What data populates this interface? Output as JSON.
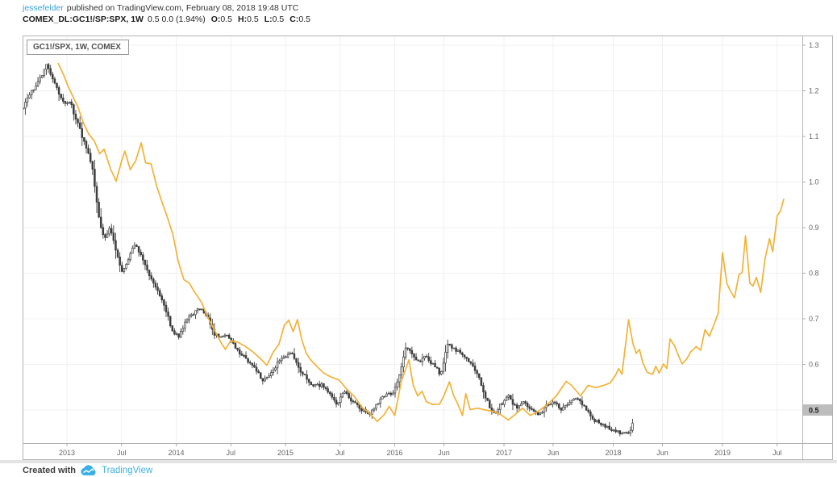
{
  "header": {
    "author": "jessefelder",
    "published_text": "published on TradingView.com, February 08, 2018 19:48 UTC",
    "symbol_line": {
      "symbol": "COMEX_DL:GC1!/SP:SPX, 1W",
      "change_text": "0.5 0.0 (1.94%)",
      "ohlc": [
        {
          "label": "O:",
          "value": "0.5"
        },
        {
          "label": "H:",
          "value": "0.5"
        },
        {
          "label": "L:",
          "value": "0.5"
        },
        {
          "label": "C:",
          "value": "0.5"
        }
      ]
    }
  },
  "chart": {
    "legend": "GC1!/SPX, 1W, COMEX",
    "colors": {
      "line": "#f2b237",
      "candle": "#3d3d3d",
      "candle_up_fill": "#ffffff",
      "grid": "#f0f0f0",
      "border": "#b3b3b3",
      "axis_text": "#666666",
      "marker_bg": "#bdbdbd",
      "marker_text": "#1a1a1a",
      "accent_blue": "#3aa2dc"
    }
  },
  "chart_data": {
    "type": "candlestick+line",
    "title": "GC1!/SPX, 1W, COMEX",
    "x_unit": "decimal_year",
    "x_range": [
      2012.6,
      2019.73
    ],
    "y_range": [
      0.42,
      1.32
    ],
    "grid": true,
    "y_ticks": [
      "1.3",
      "1.2",
      "1.1",
      "1.0",
      "0.9",
      "0.8",
      "0.7",
      "0.6",
      "0.5"
    ],
    "last_price": "0.5",
    "x_ticks": [
      {
        "t": 2013.0,
        "label": "2013"
      },
      {
        "t": 2013.5,
        "label": "Jul"
      },
      {
        "t": 2014.0,
        "label": "2014"
      },
      {
        "t": 2014.5,
        "label": "Jul"
      },
      {
        "t": 2015.0,
        "label": "2015"
      },
      {
        "t": 2015.5,
        "label": "Jul"
      },
      {
        "t": 2016.0,
        "label": "2016"
      },
      {
        "t": 2016.45,
        "label": "Jun"
      },
      {
        "t": 2017.0,
        "label": "2017"
      },
      {
        "t": 2017.45,
        "label": "Jun"
      },
      {
        "t": 2018.0,
        "label": "2018"
      },
      {
        "t": 2018.45,
        "label": "Jun"
      },
      {
        "t": 2019.0,
        "label": "2019"
      },
      {
        "t": 2019.5,
        "label": "Jul"
      }
    ],
    "series": [
      {
        "name": "candles",
        "type": "candlestick",
        "keyframes": [
          [
            2012.6,
            1.165
          ],
          [
            2012.66,
            1.19
          ],
          [
            2012.72,
            1.215
          ],
          [
            2012.78,
            1.24
          ],
          [
            2012.82,
            1.26
          ],
          [
            2012.87,
            1.225
          ],
          [
            2012.93,
            1.195
          ],
          [
            2012.98,
            1.17
          ],
          [
            2013.03,
            1.175
          ],
          [
            2013.08,
            1.14
          ],
          [
            2013.14,
            1.1
          ],
          [
            2013.19,
            1.065
          ],
          [
            2013.24,
            1.02
          ],
          [
            2013.29,
            0.925
          ],
          [
            2013.34,
            0.875
          ],
          [
            2013.39,
            0.9
          ],
          [
            2013.45,
            0.85
          ],
          [
            2013.51,
            0.8
          ],
          [
            2013.56,
            0.83
          ],
          [
            2013.62,
            0.865
          ],
          [
            2013.68,
            0.84
          ],
          [
            2013.74,
            0.805
          ],
          [
            2013.8,
            0.775
          ],
          [
            2013.86,
            0.745
          ],
          [
            2013.91,
            0.715
          ],
          [
            2013.97,
            0.668
          ],
          [
            2014.03,
            0.662
          ],
          [
            2014.09,
            0.7
          ],
          [
            2014.16,
            0.712
          ],
          [
            2014.22,
            0.725
          ],
          [
            2014.28,
            0.708
          ],
          [
            2014.34,
            0.67
          ],
          [
            2014.4,
            0.656
          ],
          [
            2014.46,
            0.664
          ],
          [
            2014.52,
            0.644
          ],
          [
            2014.59,
            0.624
          ],
          [
            2014.66,
            0.608
          ],
          [
            2014.73,
            0.588
          ],
          [
            2014.79,
            0.565
          ],
          [
            2014.86,
            0.578
          ],
          [
            2014.93,
            0.602
          ],
          [
            2015.0,
            0.617
          ],
          [
            2015.06,
            0.628
          ],
          [
            2015.13,
            0.59
          ],
          [
            2015.2,
            0.565
          ],
          [
            2015.27,
            0.552
          ],
          [
            2015.33,
            0.557
          ],
          [
            2015.4,
            0.535
          ],
          [
            2015.47,
            0.515
          ],
          [
            2015.54,
            0.54
          ],
          [
            2015.61,
            0.52
          ],
          [
            2015.69,
            0.502
          ],
          [
            2015.77,
            0.49
          ],
          [
            2015.84,
            0.516
          ],
          [
            2015.91,
            0.53
          ],
          [
            2015.98,
            0.536
          ],
          [
            2016.04,
            0.572
          ],
          [
            2016.1,
            0.636
          ],
          [
            2016.16,
            0.624
          ],
          [
            2016.22,
            0.605
          ],
          [
            2016.28,
            0.62
          ],
          [
            2016.35,
            0.6
          ],
          [
            2016.42,
            0.578
          ],
          [
            2016.48,
            0.644
          ],
          [
            2016.55,
            0.634
          ],
          [
            2016.62,
            0.623
          ],
          [
            2016.69,
            0.604
          ],
          [
            2016.76,
            0.578
          ],
          [
            2016.83,
            0.528
          ],
          [
            2016.9,
            0.49
          ],
          [
            2016.97,
            0.512
          ],
          [
            2017.04,
            0.53
          ],
          [
            2017.11,
            0.506
          ],
          [
            2017.18,
            0.52
          ],
          [
            2017.25,
            0.5
          ],
          [
            2017.32,
            0.488
          ],
          [
            2017.39,
            0.51
          ],
          [
            2017.46,
            0.52
          ],
          [
            2017.53,
            0.5
          ],
          [
            2017.6,
            0.516
          ],
          [
            2017.67,
            0.528
          ],
          [
            2017.74,
            0.506
          ],
          [
            2017.81,
            0.482
          ],
          [
            2017.88,
            0.468
          ],
          [
            2017.95,
            0.461
          ],
          [
            2018.02,
            0.456
          ],
          [
            2018.09,
            0.448
          ],
          [
            2018.15,
            0.452
          ],
          [
            2018.19,
            0.478
          ]
        ]
      },
      {
        "name": "overlay_line",
        "type": "line",
        "keyframes": [
          [
            2012.92,
            1.26
          ],
          [
            2012.97,
            1.235
          ],
          [
            2013.01,
            1.21
          ],
          [
            2013.06,
            1.185
          ],
          [
            2013.1,
            1.165
          ],
          [
            2013.15,
            1.13
          ],
          [
            2013.2,
            1.105
          ],
          [
            2013.25,
            1.09
          ],
          [
            2013.3,
            1.062
          ],
          [
            2013.34,
            1.072
          ],
          [
            2013.4,
            1.028
          ],
          [
            2013.45,
            1.002
          ],
          [
            2013.5,
            1.046
          ],
          [
            2013.53,
            1.068
          ],
          [
            2013.58,
            1.027
          ],
          [
            2013.63,
            1.047
          ],
          [
            2013.68,
            1.086
          ],
          [
            2013.72,
            1.042
          ],
          [
            2013.77,
            1.04
          ],
          [
            2013.82,
            0.992
          ],
          [
            2013.87,
            0.956
          ],
          [
            2013.92,
            0.922
          ],
          [
            2013.97,
            0.885
          ],
          [
            2014.02,
            0.825
          ],
          [
            2014.07,
            0.786
          ],
          [
            2014.12,
            0.778
          ],
          [
            2014.17,
            0.758
          ],
          [
            2014.23,
            0.737
          ],
          [
            2014.29,
            0.703
          ],
          [
            2014.35,
            0.675
          ],
          [
            2014.41,
            0.648
          ],
          [
            2014.45,
            0.633
          ],
          [
            2014.5,
            0.652
          ],
          [
            2014.56,
            0.649
          ],
          [
            2014.63,
            0.64
          ],
          [
            2014.7,
            0.628
          ],
          [
            2014.77,
            0.613
          ],
          [
            2014.83,
            0.598
          ],
          [
            2014.89,
            0.628
          ],
          [
            2014.94,
            0.644
          ],
          [
            2014.99,
            0.686
          ],
          [
            2015.03,
            0.697
          ],
          [
            2015.07,
            0.672
          ],
          [
            2015.11,
            0.698
          ],
          [
            2015.15,
            0.654
          ],
          [
            2015.19,
            0.625
          ],
          [
            2015.23,
            0.61
          ],
          [
            2015.29,
            0.595
          ],
          [
            2015.35,
            0.581
          ],
          [
            2015.42,
            0.572
          ],
          [
            2015.49,
            0.566
          ],
          [
            2015.56,
            0.546
          ],
          [
            2015.63,
            0.53
          ],
          [
            2015.7,
            0.506
          ],
          [
            2015.77,
            0.493
          ],
          [
            2015.84,
            0.475
          ],
          [
            2015.9,
            0.489
          ],
          [
            2015.95,
            0.508
          ],
          [
            2016.0,
            0.488
          ],
          [
            2016.06,
            0.562
          ],
          [
            2016.13,
            0.61
          ],
          [
            2016.17,
            0.554
          ],
          [
            2016.21,
            0.531
          ],
          [
            2016.25,
            0.541
          ],
          [
            2016.29,
            0.518
          ],
          [
            2016.35,
            0.512
          ],
          [
            2016.41,
            0.513
          ],
          [
            2016.45,
            0.531
          ],
          [
            2016.5,
            0.562
          ],
          [
            2016.54,
            0.531
          ],
          [
            2016.58,
            0.512
          ],
          [
            2016.62,
            0.488
          ],
          [
            2016.65,
            0.536
          ],
          [
            2016.69,
            0.501
          ],
          [
            2016.76,
            0.504
          ],
          [
            2016.83,
            0.5
          ],
          [
            2016.9,
            0.497
          ],
          [
            2016.97,
            0.49
          ],
          [
            2017.04,
            0.478
          ],
          [
            2017.12,
            0.494
          ],
          [
            2017.17,
            0.504
          ],
          [
            2017.24,
            0.488
          ],
          [
            2017.32,
            0.498
          ],
          [
            2017.4,
            0.513
          ],
          [
            2017.48,
            0.531
          ],
          [
            2017.57,
            0.563
          ],
          [
            2017.62,
            0.554
          ],
          [
            2017.7,
            0.531
          ],
          [
            2017.77,
            0.554
          ],
          [
            2017.84,
            0.549
          ],
          [
            2017.91,
            0.554
          ],
          [
            2017.97,
            0.559
          ],
          [
            2018.02,
            0.576
          ],
          [
            2018.05,
            0.591
          ],
          [
            2018.08,
            0.578
          ],
          [
            2018.14,
            0.698
          ],
          [
            2018.18,
            0.646
          ],
          [
            2018.21,
            0.624
          ],
          [
            2018.24,
            0.633
          ],
          [
            2018.27,
            0.604
          ],
          [
            2018.31,
            0.583
          ],
          [
            2018.36,
            0.578
          ],
          [
            2018.39,
            0.596
          ],
          [
            2018.42,
            0.581
          ],
          [
            2018.46,
            0.601
          ],
          [
            2018.49,
            0.591
          ],
          [
            2018.52,
            0.656
          ],
          [
            2018.56,
            0.641
          ],
          [
            2018.6,
            0.618
          ],
          [
            2018.63,
            0.601
          ],
          [
            2018.67,
            0.611
          ],
          [
            2018.71,
            0.628
          ],
          [
            2018.76,
            0.639
          ],
          [
            2018.8,
            0.631
          ],
          [
            2018.84,
            0.676
          ],
          [
            2018.88,
            0.662
          ],
          [
            2018.92,
            0.686
          ],
          [
            2018.96,
            0.712
          ],
          [
            2019.0,
            0.845
          ],
          [
            2019.04,
            0.778
          ],
          [
            2019.07,
            0.762
          ],
          [
            2019.11,
            0.746
          ],
          [
            2019.15,
            0.796
          ],
          [
            2019.18,
            0.802
          ],
          [
            2019.21,
            0.882
          ],
          [
            2019.25,
            0.778
          ],
          [
            2019.28,
            0.772
          ],
          [
            2019.31,
            0.791
          ],
          [
            2019.35,
            0.758
          ],
          [
            2019.39,
            0.832
          ],
          [
            2019.43,
            0.876
          ],
          [
            2019.46,
            0.847
          ],
          [
            2019.5,
            0.926
          ],
          [
            2019.53,
            0.936
          ],
          [
            2019.56,
            0.962
          ]
        ]
      }
    ]
  },
  "footer": {
    "created_with": "Created with",
    "brand": "TradingView"
  }
}
